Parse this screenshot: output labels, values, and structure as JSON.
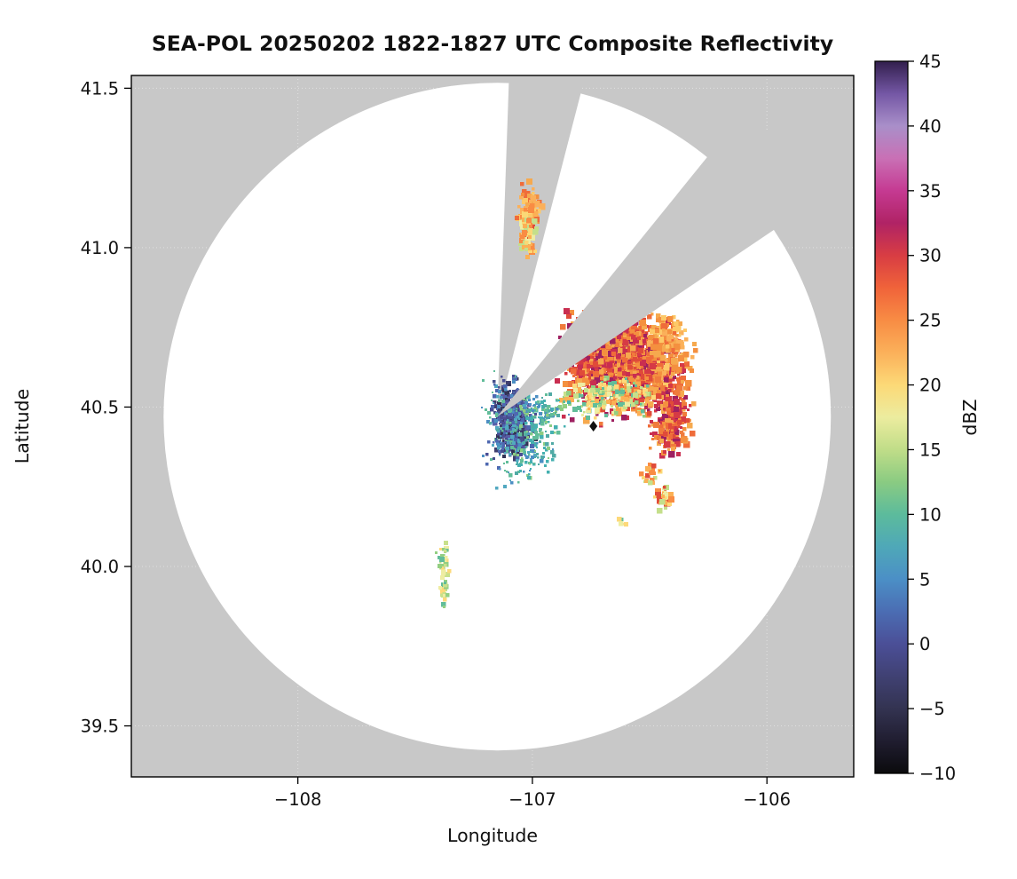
{
  "chart_data": {
    "type": "heatmap",
    "title": "SEA-POL 20250202 1822-1827 UTC Composite Reflectivity",
    "xlabel": "Longitude",
    "ylabel": "Latitude",
    "xlim": [
      -108.71,
      -105.63
    ],
    "ylim": [
      39.34,
      41.54
    ],
    "xticks": [
      -108,
      -107,
      -106
    ],
    "yticks": [
      39.5,
      40.0,
      40.5,
      41.0,
      41.5
    ],
    "masked_color": "#c8c8c8",
    "field_background": "#ffffff",
    "radar": {
      "center_lon": -107.15,
      "center_lat": 40.47,
      "range_lat_deg": 1.047,
      "blocked_sectors_azimuth_deg": [
        [
          2,
          14.5
        ],
        [
          39,
          56
        ]
      ]
    },
    "marker": {
      "lon": -106.74,
      "lat": 40.44,
      "shape": "diamond",
      "color": "#111111"
    },
    "colorbar": {
      "label": "dBZ",
      "min": -10,
      "max": 45,
      "ticks": [
        -10,
        -5,
        0,
        5,
        10,
        15,
        20,
        25,
        30,
        35,
        40,
        45
      ],
      "stops": [
        {
          "v": -10,
          "c": "#0b0b0d"
        },
        {
          "v": -7.5,
          "c": "#201d30"
        },
        {
          "v": -5,
          "c": "#333351"
        },
        {
          "v": -2.5,
          "c": "#404173"
        },
        {
          "v": 0,
          "c": "#4b4f97"
        },
        {
          "v": 2.5,
          "c": "#4b6db3"
        },
        {
          "v": 5,
          "c": "#4b8fc6"
        },
        {
          "v": 7.5,
          "c": "#4fa8b8"
        },
        {
          "v": 10,
          "c": "#5cbb9c"
        },
        {
          "v": 12.5,
          "c": "#8acb82"
        },
        {
          "v": 15,
          "c": "#c0dd88"
        },
        {
          "v": 17.5,
          "c": "#ecec9f"
        },
        {
          "v": 20,
          "c": "#fcd977"
        },
        {
          "v": 22.5,
          "c": "#fbb05a"
        },
        {
          "v": 25,
          "c": "#f88c44"
        },
        {
          "v": 27.5,
          "c": "#f0633a"
        },
        {
          "v": 30,
          "c": "#d83d43"
        },
        {
          "v": 32.5,
          "c": "#b02365"
        },
        {
          "v": 35,
          "c": "#c53a92"
        },
        {
          "v": 37.5,
          "c": "#c970b5"
        },
        {
          "v": 40,
          "c": "#a98fc9"
        },
        {
          "v": 42.5,
          "c": "#7457a5"
        },
        {
          "v": 45,
          "c": "#321f4d"
        }
      ]
    },
    "palettes": {
      "hot_core": [
        "#f4903f",
        "#ef6c3a",
        "#e04b39",
        "#f6a94e",
        "#c92e50",
        "#f07b3c",
        "#d63a45",
        "#9e2060"
      ],
      "warm": [
        "#f6a94e",
        "#f4903f",
        "#fdc968",
        "#ef6c3a",
        "#fbb05a"
      ],
      "fringe": [
        "#c8e08b",
        "#eeeda2",
        "#93cf82",
        "#fdd97a",
        "#62bd9a",
        "#fcb054"
      ],
      "cool_core": [
        "#3f3f6e",
        "#4a4e94",
        "#4e68b0",
        "#333354",
        "#5c5ca6",
        "#46508c"
      ],
      "cool_edge": [
        "#4c8fc3",
        "#4e68b0",
        "#62bd9a",
        "#4a4e94",
        "#52a8c0"
      ],
      "teal": [
        "#50aaa5",
        "#62bd9a",
        "#4c8fc3",
        "#8ccc83",
        "#45b0b0"
      ],
      "yellow": [
        "#eeeda2",
        "#fbd876",
        "#fcb054",
        "#c4df8b",
        "#f98c43",
        "#e04b39"
      ],
      "green": [
        "#93cf82",
        "#c8e08b",
        "#eeeda2",
        "#62bd9a",
        "#fdd97a"
      ]
    },
    "echo_clusters": [
      {
        "name": "ne-storm-core",
        "lon": -106.645,
        "lat": 40.645,
        "sigma_lon": 0.105,
        "sigma_lat": 0.075,
        "count": 950,
        "cell": 5,
        "palette": "hot_core",
        "seed": 11
      },
      {
        "name": "ne-storm-east",
        "lon": -106.5,
        "lat": 40.6,
        "sigma_lon": 0.07,
        "sigma_lat": 0.05,
        "count": 320,
        "cell": 5,
        "palette": "hot_core",
        "seed": 22
      },
      {
        "name": "ne-storm-upper",
        "lon": -106.6,
        "lat": 40.72,
        "sigma_lon": 0.05,
        "sigma_lat": 0.035,
        "count": 200,
        "cell": 5,
        "palette": "hot_core",
        "seed": 33
      },
      {
        "name": "ne-storm-ne-lobe",
        "lon": -106.42,
        "lat": 40.69,
        "sigma_lon": 0.045,
        "sigma_lat": 0.05,
        "count": 160,
        "cell": 5,
        "palette": "warm",
        "seed": 44
      },
      {
        "name": "ne-storm-south-fringe",
        "lon": -106.68,
        "lat": 40.53,
        "sigma_lon": 0.1,
        "sigma_lat": 0.03,
        "count": 210,
        "cell": 4,
        "palette": "fringe",
        "seed": 55
      },
      {
        "name": "east-cell-mid",
        "lon": -106.4,
        "lat": 40.5,
        "sigma_lon": 0.035,
        "sigma_lat": 0.045,
        "count": 120,
        "cell": 5,
        "palette": "hot_core",
        "seed": 66
      },
      {
        "name": "east-cell-low",
        "lon": -106.42,
        "lat": 40.41,
        "sigma_lon": 0.035,
        "sigma_lat": 0.025,
        "count": 90,
        "cell": 5,
        "palette": "hot_core",
        "seed": 77
      },
      {
        "name": "small-cell-southeast",
        "lon": -106.44,
        "lat": 40.22,
        "sigma_lon": 0.018,
        "sigma_lat": 0.022,
        "count": 30,
        "cell": 5,
        "palette": "yellow",
        "seed": 88
      },
      {
        "name": "near-radar-core",
        "lon": -107.085,
        "lat": 40.455,
        "sigma_lon": 0.033,
        "sigma_lat": 0.052,
        "count": 520,
        "cell": 4,
        "palette": "cool_core",
        "seed": 99
      },
      {
        "name": "near-radar-halo",
        "lon": -107.09,
        "lat": 40.44,
        "sigma_lon": 0.05,
        "sigma_lat": 0.07,
        "count": 220,
        "cell": 3,
        "palette": "cool_edge",
        "seed": 111
      },
      {
        "name": "teal-bridge",
        "lon": -106.975,
        "lat": 40.475,
        "sigma_lon": 0.055,
        "sigma_lat": 0.03,
        "count": 140,
        "cell": 3,
        "palette": "teal",
        "seed": 122
      },
      {
        "name": "teal-south",
        "lon": -107.0,
        "lat": 40.36,
        "sigma_lon": 0.045,
        "sigma_lat": 0.04,
        "count": 100,
        "cell": 3,
        "palette": "teal",
        "seed": 133
      },
      {
        "name": "north-patch-top",
        "lon": -107.015,
        "lat": 41.115,
        "sigma_lon": 0.022,
        "sigma_lat": 0.035,
        "count": 90,
        "cell": 5,
        "palette": "warm",
        "seed": 144
      },
      {
        "name": "north-patch-bottom",
        "lon": -107.02,
        "lat": 41.045,
        "sigma_lon": 0.016,
        "sigma_lat": 0.04,
        "count": 80,
        "cell": 5,
        "palette": "yellow",
        "seed": 155
      },
      {
        "name": "south-specks",
        "lon": -107.38,
        "lat": 39.985,
        "sigma_lon": 0.012,
        "sigma_lat": 0.05,
        "count": 50,
        "cell": 4,
        "palette": "green",
        "seed": 166
      },
      {
        "name": "tiny-speck-south",
        "lon": -106.62,
        "lat": 40.145,
        "sigma_lon": 0.01,
        "sigma_lat": 0.01,
        "count": 8,
        "cell": 4,
        "palette": "green",
        "seed": 177
      },
      {
        "name": "specks-east-low",
        "lon": -106.5,
        "lat": 40.295,
        "sigma_lon": 0.02,
        "sigma_lat": 0.02,
        "count": 25,
        "cell": 4,
        "palette": "yellow",
        "seed": 188
      }
    ]
  }
}
